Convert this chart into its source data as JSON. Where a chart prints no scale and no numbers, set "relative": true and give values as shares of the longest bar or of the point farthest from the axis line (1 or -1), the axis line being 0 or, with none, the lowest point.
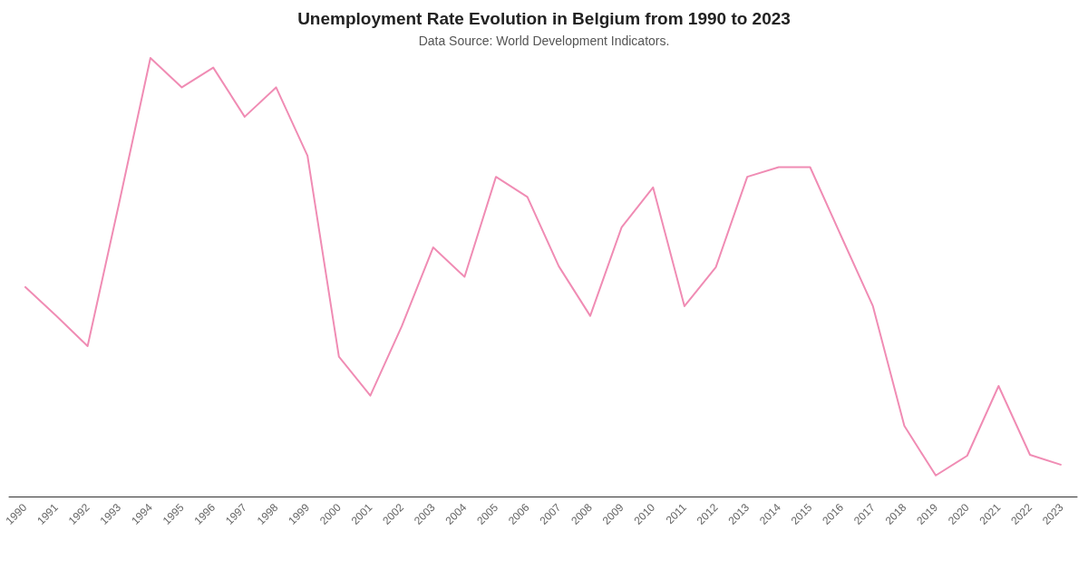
{
  "chart_data": {
    "type": "line",
    "title": "Unemployment Rate Evolution in Belgium from 1990 to 2023",
    "subtitle": "Data Source: World Development Indicators.",
    "categories": [
      "1990",
      "1991",
      "1992",
      "1993",
      "1994",
      "1995",
      "1996",
      "1997",
      "1998",
      "1999",
      "2000",
      "2001",
      "2002",
      "2003",
      "2004",
      "2005",
      "2006",
      "2007",
      "2008",
      "2009",
      "2010",
      "2011",
      "2012",
      "2013",
      "2014",
      "2015",
      "2016",
      "2017",
      "2018",
      "2019",
      "2020",
      "2021",
      "2022",
      "2023"
    ],
    "values": [
      0.479,
      0.412,
      0.343,
      0.668,
      1,
      0.933,
      0.978,
      0.866,
      0.933,
      0.777,
      0.319,
      0.23,
      0.388,
      0.568,
      0.501,
      0.729,
      0.683,
      0.525,
      0.412,
      0.614,
      0.705,
      0.434,
      0.523,
      0.729,
      0.751,
      0.751,
      0.592,
      0.434,
      0.161,
      0.048,
      0.093,
      0.252,
      0.095,
      0.072
    ],
    "color": "#f08cb4",
    "relative": true
  }
}
